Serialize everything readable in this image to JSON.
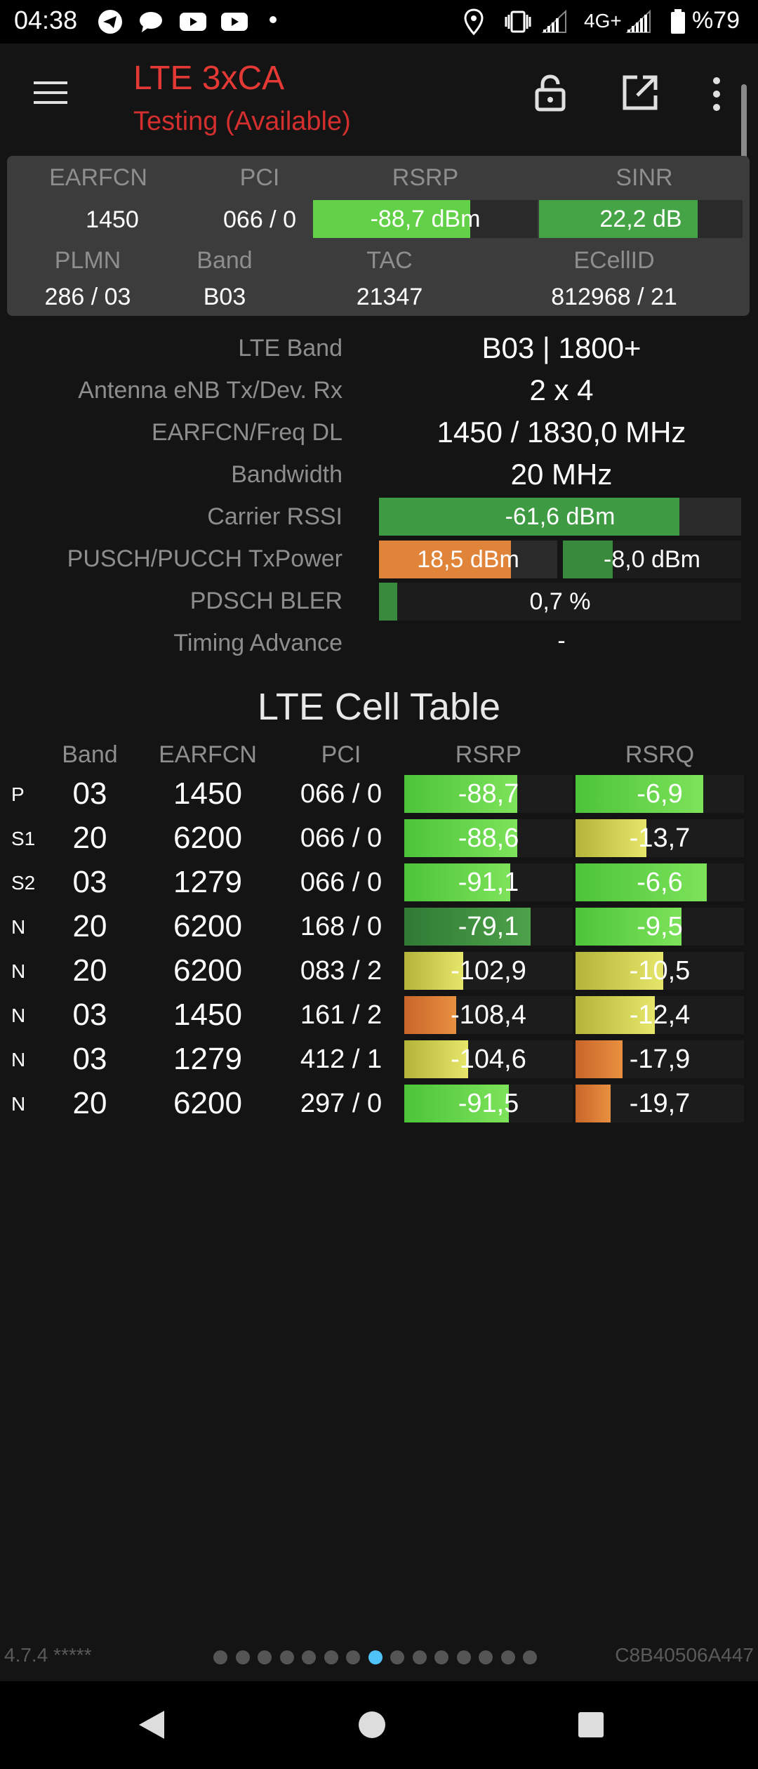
{
  "status_bar": {
    "time": "04:38",
    "network": "4G+",
    "battery": "%79",
    "icons": [
      "telegram-icon",
      "chat-icon",
      "youtube-icon",
      "youtube-icon",
      "dot-icon",
      "location-icon",
      "vibrate-icon",
      "signal-icon",
      "signal-icon",
      "battery-icon"
    ]
  },
  "toolbar": {
    "title": "LTE 3xCA",
    "subtitle": "Testing (Available)",
    "title_color": "#e53935"
  },
  "summary": {
    "headers": {
      "earfcn": "EARFCN",
      "pci": "PCI",
      "rsrp": "RSRP",
      "sinr": "SINR",
      "plmn": "PLMN",
      "band": "Band",
      "tac": "TAC",
      "ecellid": "ECellID"
    },
    "earfcn": "1450",
    "pci": "066 / 0",
    "rsrp": "-88,7 dBm",
    "rsrp_level": 0.7,
    "sinr": "22,2 dB",
    "sinr_level": 0.78,
    "plmn": "286 / 03",
    "band": "B03",
    "tac": "21347",
    "ecellid": "812968 / 21"
  },
  "details": {
    "lte_band_label": "LTE Band",
    "lte_band": "B03 | 1800+",
    "antenna_label": "Antenna eNB Tx/Dev. Rx",
    "antenna": "2 x 4",
    "freq_label": "EARFCN/Freq DL",
    "freq": "1450 / 1830,0 MHz",
    "bandwidth_label": "Bandwidth",
    "bandwidth": "20 MHz",
    "rssi_label": "Carrier RSSI",
    "rssi": "-61,6 dBm",
    "rssi_level": 0.83,
    "txpower_label": "PUSCH/PUCCH TxPower",
    "pusch": "18,5 dBm",
    "pusch_level": 0.74,
    "pucch": "-8,0 dBm",
    "pucch_level": 0.28,
    "bler_label": "PDSCH BLER",
    "bler": "0,7 %",
    "bler_level": 0.05,
    "ta_label": "Timing Advance",
    "ta": "-"
  },
  "cell_table": {
    "title": "LTE Cell Table",
    "headers": {
      "band": "Band",
      "earfcn": "EARFCN",
      "pci": "PCI",
      "rsrp": "RSRP",
      "rsrq": "RSRQ"
    },
    "rows": [
      {
        "type": "P",
        "band": "03",
        "earfcn": "1450",
        "pci": "066 / 0",
        "rsrp": "-88,7",
        "rsrp_level": 0.67,
        "rsrp_color": "green",
        "rsrq": "-6,9",
        "rsrq_level": 0.76,
        "rsrq_color": "green"
      },
      {
        "type": "S1",
        "band": "20",
        "earfcn": "6200",
        "pci": "066 / 0",
        "rsrp": "-88,6",
        "rsrp_level": 0.67,
        "rsrp_color": "green",
        "rsrq": "-13,7",
        "rsrq_level": 0.42,
        "rsrq_color": "yellow"
      },
      {
        "type": "S2",
        "band": "03",
        "earfcn": "1279",
        "pci": "066 / 0",
        "rsrp": "-91,1",
        "rsrp_level": 0.63,
        "rsrp_color": "green",
        "rsrq": "-6,6",
        "rsrq_level": 0.78,
        "rsrq_color": "green"
      },
      {
        "type": "N",
        "band": "20",
        "earfcn": "6200",
        "pci": "168 / 0",
        "rsrp": "-79,1",
        "rsrp_level": 0.75,
        "rsrp_color": "darkgreen",
        "rsrq": "-9,5",
        "rsrq_level": 0.63,
        "rsrq_color": "green"
      },
      {
        "type": "N",
        "band": "20",
        "earfcn": "6200",
        "pci": "083 / 2",
        "rsrp": "-102,9",
        "rsrp_level": 0.35,
        "rsrp_color": "yellow",
        "rsrq": "-10,5",
        "rsrq_level": 0.52,
        "rsrq_color": "yellow"
      },
      {
        "type": "N",
        "band": "03",
        "earfcn": "1450",
        "pci": "161 / 2",
        "rsrp": "-108,4",
        "rsrp_level": 0.31,
        "rsrp_color": "orange",
        "rsrq": "-12,4",
        "rsrq_level": 0.47,
        "rsrq_color": "yellow"
      },
      {
        "type": "N",
        "band": "03",
        "earfcn": "1279",
        "pci": "412 / 1",
        "rsrp": "-104,6",
        "rsrp_level": 0.38,
        "rsrp_color": "yellow",
        "rsrq": "-17,9",
        "rsrq_level": 0.28,
        "rsrq_color": "orange"
      },
      {
        "type": "N",
        "band": "20",
        "earfcn": "6200",
        "pci": "297 / 0",
        "rsrp": "-91,5",
        "rsrp_level": 0.62,
        "rsrp_color": "green",
        "rsrq": "-19,7",
        "rsrq_level": 0.21,
        "rsrq_color": "orange"
      }
    ]
  },
  "footer": {
    "version": "4.7.4 *****",
    "device_id": "C8B40506A447",
    "page_count": 15,
    "active_page": 8
  },
  "colors": {
    "green": "#5fd13c",
    "darkgreen": "#3b8a3a",
    "yellow": "#c8c841",
    "orange": "#d9782b",
    "accent": "#4fc3f7"
  }
}
